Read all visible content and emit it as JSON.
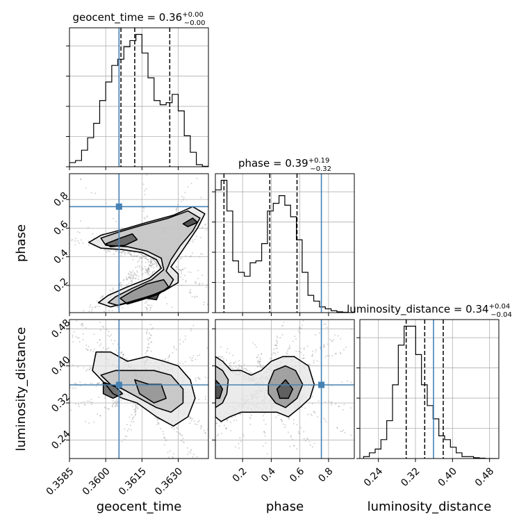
{
  "chart_data": {
    "type": "corner",
    "parameters": [
      "geocent_time",
      "phase",
      "luminosity_distance"
    ],
    "injection": {
      "geocent_time": 0.36055,
      "phase": 0.75,
      "luminosity_distance": 0.359
    },
    "colors": {
      "injection": "#4682b4",
      "contour": "#000000",
      "points": "#9a9a9a",
      "grid": "#b0b0b0"
    },
    "grid": true,
    "titles": [
      {
        "param": "geocent_time",
        "text": "geocent_time = 0.36",
        "plus": "+0.00",
        "minus": "−0.00",
        "median": 0.3612,
        "lower": 0.36063,
        "upper": 0.36265
      },
      {
        "param": "phase",
        "text": "phase = 0.39",
        "plus": "+0.19",
        "minus": "−0.32",
        "median": 0.39,
        "lower": 0.07,
        "upper": 0.58
      },
      {
        "param": "luminosity_distance",
        "text": "luminosity_distance = 0.34",
        "plus": "+0.04",
        "minus": "−0.04",
        "median": 0.34,
        "lower": 0.3,
        "upper": 0.38
      }
    ],
    "axes": {
      "geocent_time": {
        "range": [
          0.3585,
          0.36425
        ],
        "ticks": [
          0.3585,
          0.36,
          0.3615,
          0.363
        ],
        "ticklabels": [
          "0.3585",
          "0.3600",
          "0.3615",
          "0.3630"
        ],
        "label": "geocent_time"
      },
      "phase": {
        "range": [
          0.01,
          0.98
        ],
        "ticks": [
          0.2,
          0.4,
          0.6,
          0.8
        ],
        "ticklabels": [
          "0.2",
          "0.4",
          "0.6",
          "0.8"
        ],
        "label": "phase"
      },
      "luminosity_distance": {
        "range": [
          0.2,
          0.5
        ],
        "ticks": [
          0.24,
          0.32,
          0.4,
          0.48
        ],
        "ticklabels": [
          "0.24",
          "0.32",
          "0.40",
          "0.48"
        ],
        "label": "luminosity_distance"
      }
    },
    "histograms": {
      "geocent_time": {
        "bin_start": 0.3585,
        "bin_width": 0.00025,
        "counts": [
          0.1,
          0.15,
          0.4,
          0.7,
          1.05,
          1.6,
          2.05,
          2.45,
          2.6,
          2.9,
          3.05,
          3.2,
          2.75,
          2.15,
          1.6,
          1.5,
          1.55,
          1.75,
          1.35,
          0.75,
          0.35,
          0.05,
          0.01
        ]
      },
      "phase": {
        "bin_start": 0.01,
        "bin_width": 0.0404,
        "counts": [
          3.2,
          3.45,
          2.65,
          1.35,
          1.05,
          0.95,
          1.3,
          1.35,
          1.8,
          2.65,
          2.85,
          3.05,
          2.8,
          2.5,
          1.9,
          1.05,
          0.45,
          0.3,
          0.15,
          0.1,
          0.05,
          0.02,
          0.01,
          0.0
        ]
      },
      "luminosity_distance": {
        "bin_start": 0.208,
        "bin_width": 0.0125,
        "counts": [
          0.05,
          0.15,
          0.25,
          0.5,
          1.0,
          1.95,
          3.0,
          3.5,
          3.5,
          2.75,
          1.95,
          1.4,
          1.05,
          0.6,
          0.5,
          0.3,
          0.15,
          0.05,
          0.05,
          0.02,
          0.01,
          0.0,
          0.0
        ]
      }
    },
    "contours_geocent_phase": [
      [
        [
          0.3602,
          0.05
        ],
        [
          0.3609,
          0.08
        ],
        [
          0.3617,
          0.12
        ],
        [
          0.3624,
          0.16
        ],
        [
          0.363,
          0.22
        ],
        [
          0.363,
          0.28
        ],
        [
          0.3627,
          0.33
        ],
        [
          0.363,
          0.4
        ],
        [
          0.3634,
          0.5
        ],
        [
          0.3638,
          0.6
        ],
        [
          0.3641,
          0.7
        ],
        [
          0.3636,
          0.75
        ],
        [
          0.3628,
          0.69
        ],
        [
          0.3617,
          0.64
        ],
        [
          0.3607,
          0.59
        ],
        [
          0.3598,
          0.55
        ],
        [
          0.3593,
          0.5
        ],
        [
          0.3598,
          0.46
        ],
        [
          0.3607,
          0.45
        ],
        [
          0.3615,
          0.43
        ],
        [
          0.3621,
          0.38
        ],
        [
          0.3623,
          0.32
        ],
        [
          0.3618,
          0.25
        ],
        [
          0.3609,
          0.19
        ],
        [
          0.3601,
          0.13
        ],
        [
          0.3597,
          0.08
        ]
      ],
      [
        [
          0.3605,
          0.06
        ],
        [
          0.3612,
          0.09
        ],
        [
          0.3619,
          0.13
        ],
        [
          0.3626,
          0.18
        ],
        [
          0.3628,
          0.24
        ],
        [
          0.3625,
          0.3
        ],
        [
          0.3627,
          0.38
        ],
        [
          0.3631,
          0.48
        ],
        [
          0.3636,
          0.58
        ],
        [
          0.3639,
          0.67
        ],
        [
          0.3634,
          0.72
        ],
        [
          0.3626,
          0.67
        ],
        [
          0.3615,
          0.62
        ],
        [
          0.3605,
          0.57
        ],
        [
          0.3598,
          0.53
        ],
        [
          0.36,
          0.48
        ],
        [
          0.3609,
          0.47
        ],
        [
          0.3617,
          0.44
        ],
        [
          0.3623,
          0.39
        ],
        [
          0.3624,
          0.31
        ],
        [
          0.3619,
          0.24
        ],
        [
          0.3611,
          0.18
        ],
        [
          0.3604,
          0.12
        ],
        [
          0.3601,
          0.08
        ]
      ],
      [
        [
          0.3609,
          0.07
        ],
        [
          0.3615,
          0.1
        ],
        [
          0.3622,
          0.14
        ],
        [
          0.3626,
          0.19
        ],
        [
          0.3624,
          0.24
        ],
        [
          0.3617,
          0.21
        ],
        [
          0.3611,
          0.16
        ],
        [
          0.3606,
          0.11
        ]
      ],
      [
        [
          0.36,
          0.49
        ],
        [
          0.3606,
          0.53
        ],
        [
          0.3611,
          0.56
        ],
        [
          0.3613,
          0.52
        ],
        [
          0.3608,
          0.48
        ],
        [
          0.3602,
          0.47
        ]
      ],
      [
        [
          0.3632,
          0.63
        ],
        [
          0.3636,
          0.67
        ],
        [
          0.3638,
          0.64
        ],
        [
          0.3634,
          0.61
        ]
      ],
      [
        [
          0.3617,
          0.11
        ],
        [
          0.3622,
          0.14
        ],
        [
          0.3621,
          0.1
        ]
      ]
    ],
    "contours_geocent_lumdist": [
      [
        [
          0.35945,
          0.39
        ],
        [
          0.36,
          0.36
        ],
        [
          0.3603,
          0.34
        ],
        [
          0.3607,
          0.33
        ],
        [
          0.3613,
          0.32
        ],
        [
          0.3621,
          0.29
        ],
        [
          0.3628,
          0.27
        ],
        [
          0.3634,
          0.29
        ],
        [
          0.3637,
          0.33
        ],
        [
          0.3635,
          0.37
        ],
        [
          0.363,
          0.4
        ],
        [
          0.3624,
          0.41
        ],
        [
          0.3617,
          0.42
        ],
        [
          0.3609,
          0.41
        ],
        [
          0.3602,
          0.43
        ],
        [
          0.3596,
          0.43
        ]
      ],
      [
        [
          0.3598,
          0.38
        ],
        [
          0.3602,
          0.36
        ],
        [
          0.3607,
          0.35
        ],
        [
          0.3614,
          0.33
        ],
        [
          0.3621,
          0.31
        ],
        [
          0.3627,
          0.3
        ],
        [
          0.3632,
          0.32
        ],
        [
          0.3632,
          0.35
        ],
        [
          0.3627,
          0.38
        ],
        [
          0.362,
          0.39
        ],
        [
          0.3612,
          0.39
        ],
        [
          0.3604,
          0.39
        ]
      ],
      [
        [
          0.3612,
          0.37
        ],
        [
          0.3618,
          0.36
        ],
        [
          0.3623,
          0.36
        ],
        [
          0.3625,
          0.33
        ],
        [
          0.362,
          0.32
        ],
        [
          0.3614,
          0.34
        ]
      ],
      [
        [
          0.3599,
          0.365
        ],
        [
          0.3604,
          0.355
        ],
        [
          0.3607,
          0.34
        ],
        [
          0.3603,
          0.33
        ],
        [
          0.3599,
          0.34
        ]
      ]
    ],
    "contours_phase_lumdist": [
      [
        [
          0.01,
          0.42
        ],
        [
          0.06,
          0.41
        ],
        [
          0.12,
          0.39
        ],
        [
          0.19,
          0.39
        ],
        [
          0.26,
          0.38
        ],
        [
          0.33,
          0.39
        ],
        [
          0.4,
          0.41
        ],
        [
          0.48,
          0.42
        ],
        [
          0.56,
          0.42
        ],
        [
          0.61,
          0.41
        ],
        [
          0.66,
          0.4
        ],
        [
          0.7,
          0.36
        ],
        [
          0.67,
          0.33
        ],
        [
          0.6,
          0.31
        ],
        [
          0.52,
          0.29
        ],
        [
          0.44,
          0.3
        ],
        [
          0.35,
          0.3
        ],
        [
          0.27,
          0.3
        ],
        [
          0.19,
          0.3
        ],
        [
          0.11,
          0.29
        ],
        [
          0.05,
          0.28
        ],
        [
          0.01,
          0.29
        ]
      ],
      [
        [
          0.01,
          0.4
        ],
        [
          0.06,
          0.39
        ],
        [
          0.1,
          0.37
        ],
        [
          0.09,
          0.34
        ],
        [
          0.06,
          0.32
        ],
        [
          0.01,
          0.31
        ]
      ],
      [
        [
          0.38,
          0.36
        ],
        [
          0.42,
          0.39
        ],
        [
          0.5,
          0.4
        ],
        [
          0.57,
          0.39
        ],
        [
          0.62,
          0.36
        ],
        [
          0.58,
          0.33
        ],
        [
          0.5,
          0.31
        ],
        [
          0.43,
          0.32
        ],
        [
          0.38,
          0.34
        ]
      ],
      [
        [
          0.44,
          0.35
        ],
        [
          0.5,
          0.37
        ],
        [
          0.55,
          0.35
        ],
        [
          0.52,
          0.33
        ],
        [
          0.46,
          0.33
        ]
      ],
      [
        [
          0.01,
          0.37
        ],
        [
          0.04,
          0.36
        ],
        [
          0.06,
          0.35
        ],
        [
          0.04,
          0.33
        ],
        [
          0.01,
          0.33
        ]
      ]
    ]
  }
}
